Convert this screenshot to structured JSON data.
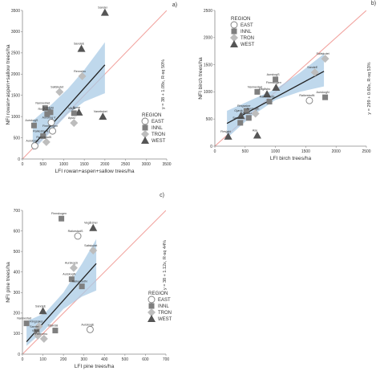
{
  "chart_data": [
    {
      "type": "scatter",
      "panel_label": "a)",
      "xlabel": "LFI rowan+aspen+sallow trees/ha",
      "ylabel": "NFI rowan+aspen+sallow trees/ha",
      "xlim": [
        0,
        3500
      ],
      "ylim": [
        0,
        3500
      ],
      "xticks": [
        0,
        500,
        1000,
        1500,
        2000,
        2500,
        3000,
        3500
      ],
      "yticks": [
        0,
        500,
        1000,
        1500,
        2000,
        2500,
        3000,
        3500
      ],
      "regression_label": "y = 38 + 1.09x, R-sq 50%",
      "fit": {
        "intercept": 38,
        "slope": 1.09,
        "x_range": [
          250,
          2000
        ]
      },
      "band": {
        "x": [
          250,
          700,
          1100,
          1500,
          2000
        ],
        "upper": [
          900,
          1280,
          1650,
          2100,
          2750
        ],
        "lower": [
          200,
          650,
          1060,
          1350,
          1550
        ]
      },
      "points": [
        {
          "label": "Sandei",
          "x": 2000,
          "y": 3450,
          "region": "WEST"
        },
        {
          "label": "SandeE",
          "x": 1430,
          "y": 2600,
          "region": "WEST"
        },
        {
          "label": "Rennebu",
          "x": 1450,
          "y": 1950,
          "region": "TRON"
        },
        {
          "label": "Saltskutet",
          "x": 900,
          "y": 1580,
          "region": "TRON"
        },
        {
          "label": "Nannestad",
          "x": 550,
          "y": 1200,
          "region": "INNL"
        },
        {
          "label": "Aurskog",
          "x": 680,
          "y": 1100,
          "region": "INNL"
        },
        {
          "label": "Ringsaker",
          "x": 600,
          "y": 1060,
          "region": "INNL"
        },
        {
          "label": "Bjune",
          "x": 1370,
          "y": 1100,
          "region": "WEST"
        },
        {
          "label": "Vågå",
          "x": 1250,
          "y": 1080,
          "region": "INNL"
        },
        {
          "label": "Vanebskei",
          "x": 1950,
          "y": 1000,
          "region": "WEST"
        },
        {
          "label": "Aurskog V",
          "x": 700,
          "y": 860,
          "region": "EAST"
        },
        {
          "label": "Ayssi",
          "x": 1250,
          "y": 850,
          "region": "TRON"
        },
        {
          "label": "AurskogS",
          "x": 280,
          "y": 790,
          "region": "INNL"
        },
        {
          "label": "Finnskogen",
          "x": 730,
          "y": 660,
          "region": "EAST"
        },
        {
          "label": "RaikestadN",
          "x": 500,
          "y": 540,
          "region": "INNL"
        },
        {
          "label": "AurskogE",
          "x": 300,
          "y": 310,
          "region": "EAST"
        },
        {
          "label": "RaikestadS",
          "x": 580,
          "y": 400,
          "region": "TRON"
        }
      ]
    },
    {
      "type": "scatter",
      "panel_label": "b)",
      "xlabel": "LFI birch trees/ha",
      "ylabel": "NFI birch trees/ha",
      "xlim": [
        0,
        2500
      ],
      "ylim": [
        0,
        2500
      ],
      "xticks": [
        0,
        500,
        1000,
        1500,
        2000,
        2500
      ],
      "yticks": [
        0,
        500,
        1000,
        1500,
        2000,
        2500
      ],
      "regression_label": "y = 299 + 0.60x, R-sq 53%",
      "fit": {
        "intercept": 299,
        "slope": 0.6,
        "x_range": [
          200,
          1800
        ]
      },
      "band": {
        "x": [
          200,
          600,
          1000,
          1400,
          1800
        ],
        "upper": [
          650,
          850,
          1050,
          1350,
          1700
        ],
        "lower": [
          150,
          550,
          850,
          1000,
          1100
        ]
      },
      "points": [
        {
          "label": "Saltskutet",
          "x": 1820,
          "y": 1610,
          "region": "TRON"
        },
        {
          "label": "SandeE",
          "x": 1650,
          "y": 1360,
          "region": "TRON"
        },
        {
          "label": "AurskogS",
          "x": 1000,
          "y": 1230,
          "region": "INNL"
        },
        {
          "label": "Finnskogen",
          "x": 1010,
          "y": 1080,
          "region": "WEST"
        },
        {
          "label": "Nannestad",
          "x": 700,
          "y": 1000,
          "region": "INNL"
        },
        {
          "label": "Vågåsbu",
          "x": 860,
          "y": 960,
          "region": "WEST"
        },
        {
          "label": "AurskogN",
          "x": 1820,
          "y": 900,
          "region": "INNL"
        },
        {
          "label": "RaikestadS",
          "x": 900,
          "y": 820,
          "region": "INNL"
        },
        {
          "label": "RaikestadN",
          "x": 1560,
          "y": 840,
          "region": "EAST"
        },
        {
          "label": "Ringsaker",
          "x": 520,
          "y": 650,
          "region": "INNL"
        },
        {
          "label": "Gjøvik",
          "x": 430,
          "y": 560,
          "region": "WEST"
        },
        {
          "label": "AurskogE",
          "x": 670,
          "y": 600,
          "region": "TRON"
        },
        {
          "label": "Vanebu",
          "x": 560,
          "y": 520,
          "region": "INNL"
        },
        {
          "label": "SandeE",
          "x": 420,
          "y": 430,
          "region": "INNL"
        },
        {
          "label": "Ase",
          "x": 700,
          "y": 200,
          "region": "WEST"
        },
        {
          "label": "Flesjøhl",
          "x": 220,
          "y": 180,
          "region": "WEST"
        }
      ]
    },
    {
      "type": "scatter",
      "panel_label": "c)",
      "xlabel": "LFI pine trees/ha",
      "ylabel": "NFI pine trees/ha",
      "xlim": [
        0,
        700
      ],
      "ylim": [
        0,
        700
      ],
      "xticks": [
        0,
        100,
        200,
        300,
        400,
        500,
        600,
        700
      ],
      "yticks": [
        0,
        100,
        200,
        300,
        400,
        500,
        600,
        700
      ],
      "regression_label": "y = 38 + 1.12x, R-sq 44%",
      "fit": {
        "intercept": 38,
        "slope": 1.12,
        "x_range": [
          20,
          360
        ]
      },
      "band": {
        "x": [
          20,
          110,
          200,
          290,
          360
        ],
        "upper": [
          160,
          200,
          300,
          440,
          560
        ],
        "lower": [
          40,
          120,
          220,
          280,
          310
        ]
      },
      "points": [
        {
          "label": "Finnskogen",
          "x": 190,
          "y": 660,
          "region": "INNL"
        },
        {
          "label": "Vegårshei",
          "x": 345,
          "y": 615,
          "region": "WEST"
        },
        {
          "label": "RaikestadS",
          "x": 270,
          "y": 575,
          "region": "EAST"
        },
        {
          "label": "Saltskutet",
          "x": 345,
          "y": 505,
          "region": "TRON"
        },
        {
          "label": "AurskogS",
          "x": 250,
          "y": 420,
          "region": "TRON"
        },
        {
          "label": "AurskogN",
          "x": 240,
          "y": 365,
          "region": "INNL"
        },
        {
          "label": "RaikestadN",
          "x": 290,
          "y": 330,
          "region": "INNL"
        },
        {
          "label": "SandeE",
          "x": 100,
          "y": 210,
          "region": "WEST"
        },
        {
          "label": "Nannestad",
          "x": 20,
          "y": 150,
          "region": "INNL"
        },
        {
          "label": "Ringsaker",
          "x": 80,
          "y": 135,
          "region": "TRON"
        },
        {
          "label": "Sandei",
          "x": 70,
          "y": 110,
          "region": "INNL"
        },
        {
          "label": "Vågå",
          "x": 75,
          "y": 90,
          "region": "TRON"
        },
        {
          "label": "Rennebu",
          "x": 105,
          "y": 75,
          "region": "TRON"
        },
        {
          "label": "Stjørdal",
          "x": 160,
          "y": 115,
          "region": "INNL"
        },
        {
          "label": "AurskogE",
          "x": 330,
          "y": 120,
          "region": "EAST"
        }
      ]
    }
  ],
  "legend": {
    "title": "REGION",
    "items": [
      {
        "label": "EAST",
        "marker": "circle-open"
      },
      {
        "label": "INNL",
        "marker": "square"
      },
      {
        "label": "TRON",
        "marker": "diamond"
      },
      {
        "label": "WEST",
        "marker": "triangle"
      }
    ]
  },
  "colors": {
    "axis": "#888888",
    "identity_line": "#f2a4a0",
    "band": "#aacbe6",
    "fit_line": "#222222",
    "marker_dark": "#555555",
    "marker_square": "#7f7f7f",
    "marker_diamond": "#bdbdbd",
    "marker_open": "#7f7f7f"
  }
}
